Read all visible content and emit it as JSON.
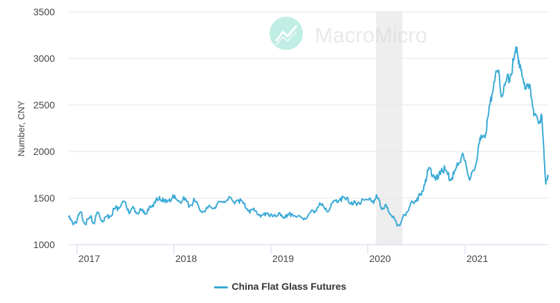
{
  "watermark": {
    "brand": "MacroMicro",
    "logo_color": "#8ee0cf"
  },
  "chart_data": {
    "type": "line",
    "title": "",
    "xlabel": "",
    "ylabel": "Number, CNY",
    "ylim": [
      1000,
      3500
    ],
    "yticks": [
      1000,
      1500,
      2000,
      2500,
      3000,
      3500
    ],
    "xlim": [
      "2016-12-01",
      "2021-11-10"
    ],
    "xticks": [
      "2017-01-01",
      "2018-01-01",
      "2019-01-01",
      "2020-01-01",
      "2021-01-01"
    ],
    "xtick_labels": [
      "2017",
      "2018",
      "2019",
      "2020",
      "2021"
    ],
    "grid": "horizontal",
    "legend_position": "bottom-center",
    "shaded_region": {
      "start": "2020-02-01",
      "end": "2020-05-10",
      "color": "#eeeeee"
    },
    "series": [
      {
        "name": "China Flat Glass Futures",
        "color": "#3aaad6",
        "x": [
          "2016-12-01",
          "2016-12-15",
          "2017-01-01",
          "2017-01-15",
          "2017-02-01",
          "2017-02-20",
          "2017-03-05",
          "2017-03-20",
          "2017-04-05",
          "2017-04-20",
          "2017-05-05",
          "2017-05-20",
          "2017-06-05",
          "2017-06-20",
          "2017-07-05",
          "2017-07-20",
          "2017-08-05",
          "2017-08-20",
          "2017-09-05",
          "2017-09-20",
          "2017-10-05",
          "2017-10-20",
          "2017-11-05",
          "2017-11-20",
          "2017-12-01",
          "2017-12-15",
          "2018-01-01",
          "2018-01-20",
          "2018-02-10",
          "2018-03-01",
          "2018-03-20",
          "2018-04-10",
          "2018-05-01",
          "2018-05-20",
          "2018-06-10",
          "2018-07-01",
          "2018-07-20",
          "2018-08-10",
          "2018-09-01",
          "2018-09-20",
          "2018-10-10",
          "2018-11-01",
          "2018-11-20",
          "2018-12-10",
          "2019-01-01",
          "2019-01-20",
          "2019-02-10",
          "2019-03-01",
          "2019-03-20",
          "2019-04-10",
          "2019-05-01",
          "2019-05-20",
          "2019-06-10",
          "2019-07-01",
          "2019-07-20",
          "2019-08-10",
          "2019-09-01",
          "2019-09-20",
          "2019-10-10",
          "2019-11-01",
          "2019-11-20",
          "2019-12-10",
          "2020-01-01",
          "2020-01-20",
          "2020-02-05",
          "2020-02-20",
          "2020-03-05",
          "2020-03-20",
          "2020-04-05",
          "2020-04-20",
          "2020-05-05",
          "2020-05-20",
          "2020-06-05",
          "2020-06-20",
          "2020-07-05",
          "2020-07-20",
          "2020-08-05",
          "2020-08-20",
          "2020-09-05",
          "2020-09-20",
          "2020-10-05",
          "2020-10-20",
          "2020-11-05",
          "2020-11-20",
          "2020-12-05",
          "2020-12-20",
          "2021-01-05",
          "2021-01-20",
          "2021-02-05",
          "2021-02-20",
          "2021-03-05",
          "2021-03-20",
          "2021-04-05",
          "2021-04-20",
          "2021-05-05",
          "2021-05-20",
          "2021-06-05",
          "2021-06-20",
          "2021-07-05",
          "2021-07-15",
          "2021-07-25",
          "2021-08-05",
          "2021-08-20",
          "2021-09-05",
          "2021-09-20",
          "2021-10-05",
          "2021-10-15",
          "2021-10-25",
          "2021-11-01",
          "2021-11-10"
        ],
        "y": [
          1290,
          1230,
          1260,
          1350,
          1220,
          1290,
          1230,
          1350,
          1260,
          1300,
          1310,
          1380,
          1400,
          1450,
          1420,
          1350,
          1390,
          1330,
          1380,
          1330,
          1400,
          1460,
          1480,
          1500,
          1450,
          1490,
          1500,
          1470,
          1480,
          1420,
          1470,
          1360,
          1380,
          1400,
          1420,
          1460,
          1480,
          1470,
          1480,
          1440,
          1370,
          1360,
          1320,
          1310,
          1330,
          1300,
          1320,
          1290,
          1330,
          1300,
          1280,
          1310,
          1360,
          1420,
          1400,
          1380,
          1470,
          1500,
          1480,
          1460,
          1420,
          1490,
          1480,
          1470,
          1510,
          1400,
          1420,
          1350,
          1300,
          1200,
          1240,
          1320,
          1400,
          1450,
          1500,
          1530,
          1700,
          1820,
          1750,
          1700,
          1820,
          1800,
          1700,
          1760,
          1850,
          1960,
          1850,
          1700,
          1800,
          2050,
          2150,
          2200,
          2500,
          2750,
          2850,
          2600,
          2750,
          2800,
          3000,
          3120,
          2900,
          2800,
          2700,
          2650,
          2400,
          2300,
          2400,
          2000,
          1650,
          1720
        ]
      }
    ]
  }
}
